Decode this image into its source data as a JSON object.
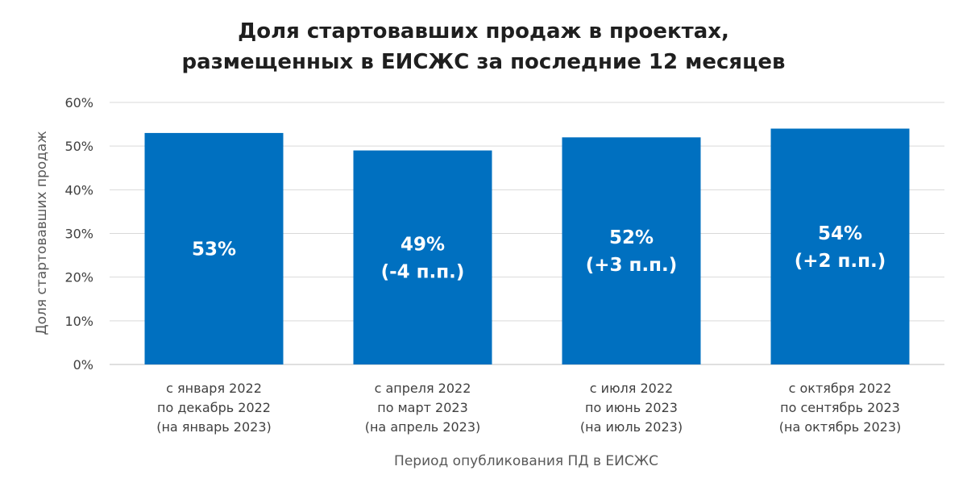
{
  "chart_data": {
    "type": "bar",
    "title": [
      "Доля стартовавших продаж в проектах,",
      "размещенных в ЕИСЖС за последние 12 месяцев"
    ],
    "categories": [
      [
        "с января 2022",
        "по декабрь 2022",
        "(на январь 2023)"
      ],
      [
        "с апреля 2022",
        "по март 2023",
        "(на апрель 2023)"
      ],
      [
        "с июля 2022",
        "по июнь 2023",
        "(на июль 2023)"
      ],
      [
        "с октября 2022",
        "по сентябрь 2023",
        "(на октябрь 2023)"
      ]
    ],
    "values": [
      53,
      49,
      52,
      54
    ],
    "data_labels": [
      [
        "53%"
      ],
      [
        "49%",
        "(-4 п.п.)"
      ],
      [
        "52%",
        "(+3 п.п.)"
      ],
      [
        "54%",
        "(+2 п.п.)"
      ]
    ],
    "xlabel": "Период опубликования ПД в ЕИСЖС",
    "ylabel": "Доля стартовавших продаж",
    "ylim": [
      0,
      60
    ],
    "yticks": [
      0,
      10,
      20,
      30,
      40,
      50,
      60
    ],
    "ytick_labels": [
      "0%",
      "10%",
      "20%",
      "30%",
      "40%",
      "50%",
      "60%"
    ],
    "grid": true,
    "legend": false,
    "colors": {
      "bar": "#0070c0",
      "grid": "#d9d9d9",
      "label": "#ffffff"
    }
  }
}
